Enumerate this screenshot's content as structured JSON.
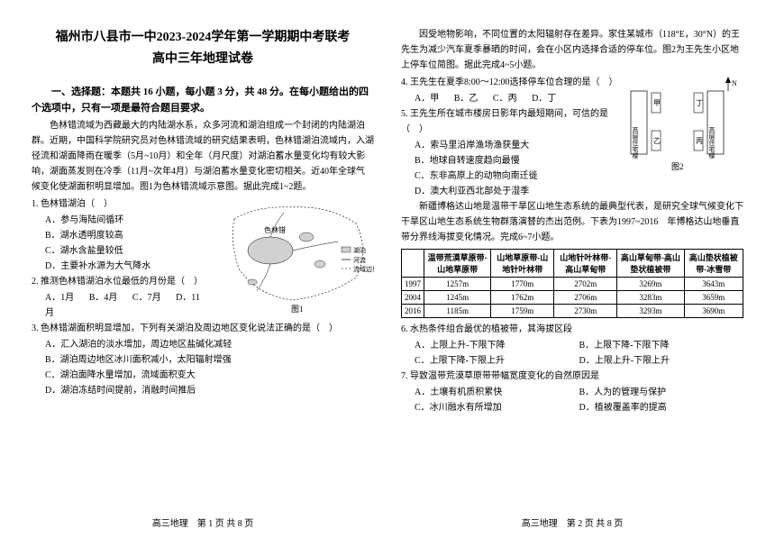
{
  "header": {
    "title_main": "福州市八县市一中2023-2024学年第一学期期中考联考",
    "title_sub": "高中三年地理试卷"
  },
  "section1_head": "一、选择题：本题共 16 小题，每小题 3 分，共 48 分。在每小题给出的四个选项中，只有一项是最符合题目要求。",
  "passage1": "色林错流域为西藏最大的内陆湖水系，众多河流和湖泊组成一个封闭的内陆湖泊群。近期，中国科学院研究员对色林错流域的研究结果表明，色林错湖泊流域内，入湖径流和湖面降雨在暖季（5月~10月）和全年（月尺度）对湖泊蓄水量变化均有较大影响，湖面蒸发则在冷季（11月~次年4月）与湖泊蓄水量变化密切相关。近40年全球气候变化使湖面积明显增加。图1为色林错流域示意图。据此完成1~2题。",
  "q1": {
    "stem": "1. 色林错湖泊（　）",
    "A": "A．参与海陆间循环",
    "B": "B．湖水透明度较高",
    "C": "C．湖水含盐量较低",
    "D": "D．主要补水源为大气降水"
  },
  "q2": {
    "stem": "2. 推测色林错湖泊水位最低的月份是（　）",
    "A": "A．1月",
    "B": "B．4月",
    "C": "C．7月",
    "D": "D．11月"
  },
  "fig1_label": "图1",
  "fig1_legend": {
    "lake": "湖泊",
    "river": "河流",
    "bound": "流域边界",
    "place": "色林错"
  },
  "q3": {
    "stem": "3. 色林错湖面积明显增加，下列有关湖泊及周边地区变化说法正确的是（　）",
    "A": "A．汇入湖泊的淡水增加，周边地区盐碱化减轻",
    "B": "B．湖泊周边地区冰川面积减小，太阳辐射增强",
    "C": "C．湖泊面降水量增加，流域面积变大",
    "D": "D．湖泊冻结时间提前，消融时间推后"
  },
  "footer_left": "高三地理　第 1 页 共 8 页",
  "passage2": "因受地物影响，不同位置的太阳辐射存在差异。家住某城市（118°E，30°N）的王先生为减少汽车夏季暴晒的时间，会在小区内选择合适的停车位。图2为王先生小区地上停车位简图。据此完成4~5小题。",
  "q4": {
    "stem": "4. 王先生在夏季8:00～12:00选择停车位合理的是（　）",
    "A": "A．甲",
    "B": "B．乙",
    "C": "C．丙",
    "D": "D．丁"
  },
  "q5": {
    "stem": "5. 王先生所在城市楼房日影年内最短期间，可信的是（　）",
    "A": "A．索马里沿岸渔场渔获量大",
    "B": "B．地球自转速度趋向最慢",
    "C": "C．东非高原上的动物向南迁徙",
    "D": "D．澳大利亚西北部处于湿季"
  },
  "fig2_label": "图2",
  "fig2_labels": {
    "jia": "甲",
    "yi": "乙",
    "bing": "丙",
    "ding": "丁",
    "shading": "斜线",
    "n": "N",
    "building": "高层住宅楼"
  },
  "passage3": "新疆博格达山地是温带干旱区山地生态系统的最典型代表，是研究全球气候变化下干旱区山地生态系统生物群落演替的杰出范例。下表为1997~2016　年博格达山地垂直带分界线海拔变化情况。完成6~7小题。",
  "table": {
    "headers": [
      "",
      "温带荒漠草原带-山地草原带",
      "山地草原带-山地针叶林带",
      "山地针叶林带-高山草甸带",
      "高山草甸带-高山垫状植被带",
      "高山垫状植被带-冰雪带"
    ],
    "rows": [
      [
        "1997",
        "1257m",
        "1770m",
        "2702m",
        "3269m",
        "3643m"
      ],
      [
        "2004",
        "1245m",
        "1762m",
        "2706m",
        "3283m",
        "3659m"
      ],
      [
        "2016",
        "1185m",
        "1759m",
        "2730m",
        "3293m",
        "3690m"
      ]
    ]
  },
  "q6": {
    "stem": "6. 水热条件组合最优的植被带，其海拔区段",
    "A": "A．上限上升-下限下降",
    "B": "B．上限下降-下限下降",
    "C": "C．上限下降-下限上升",
    "D": "D．上限上升-下限上升"
  },
  "q7": {
    "stem": "7. 导致温带荒漠草原带带幅宽度变化的自然原因是",
    "A": "A．土壤有机质积累快",
    "B": "B．人为的管理与保护",
    "C": "C．冰川融水有所增加",
    "D": "D．植被覆盖率的提高"
  },
  "footer_right": "高三地理　第 2 页 共 8 页"
}
